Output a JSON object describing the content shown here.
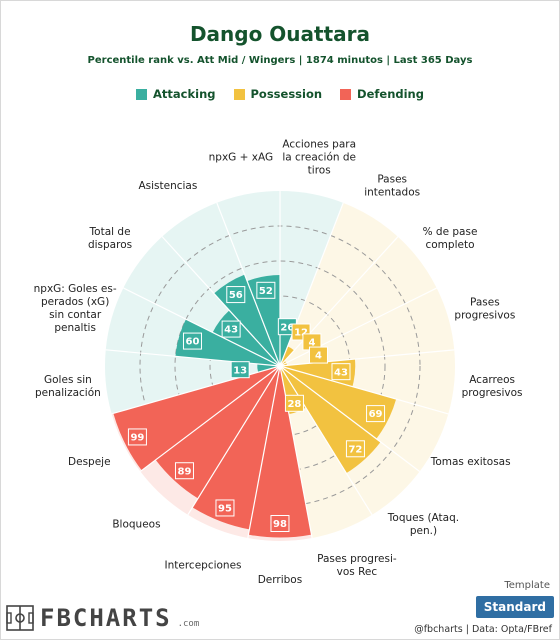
{
  "header": {
    "title": "Dango Ouattara",
    "subtitle": "Percentile rank vs. Att Mid / Wingers | 1874 minutos | Last 365 Days"
  },
  "legend": [
    {
      "label": "Attacking",
      "color": "#3aafa0"
    },
    {
      "label": "Possession",
      "color": "#f2c240"
    },
    {
      "label": "Defending",
      "color": "#f26457"
    }
  ],
  "chart_data": {
    "type": "polar-bar",
    "title": "Dango Ouattara",
    "subtitle": "Percentile rank vs. Att Mid / Wingers | 1874 minutos | Last 365 Days",
    "rlim": [
      0,
      100
    ],
    "grid": true,
    "legend_position": "top",
    "categories": [
      "Acciones para la creación de tiros",
      "Pases intentados",
      "% de pase completo",
      "Pases progresivos",
      "Acarreos progresivos",
      "Tomas exitosas",
      "Toques (Ataq. pen.)",
      "Pases progresivos Rec",
      "Derribos",
      "Intercepciones",
      "Bloqueos",
      "Despeje",
      "Goles sin penalización",
      "npxG: Goles esperados (xG) sin contar penaltis",
      "Total de disparos",
      "Asistencias",
      "npxG + xAG"
    ],
    "category_label_lines": [
      [
        "Acciones para",
        "la creación de",
        "tiros"
      ],
      [
        "Pases",
        "intentados"
      ],
      [
        "% de pase",
        "completo"
      ],
      [
        "Pases",
        "progresivos"
      ],
      [
        "Acarreos",
        "progresivos"
      ],
      [
        "Tomas exitosas"
      ],
      [
        "Toques (Ataq.",
        "pen.)"
      ],
      [
        "Pases progresi-",
        "vos Rec"
      ],
      [
        "Derribos"
      ],
      [
        "Intercepciones"
      ],
      [
        "Bloqueos"
      ],
      [
        "Despeje"
      ],
      [
        "Goles sin",
        "penalización"
      ],
      [
        "npxG: Goles es-",
        "perados (xG)",
        "sin contar",
        "penaltis"
      ],
      [
        "Total de",
        "disparos"
      ],
      [
        "Asistencias"
      ],
      [
        "npxG + xAG"
      ]
    ],
    "groups": [
      "Attacking",
      "Possession",
      "Possession",
      "Possession",
      "Possession",
      "Possession",
      "Possession",
      "Possession",
      "Defending",
      "Defending",
      "Defending",
      "Defending",
      "Attacking",
      "Attacking",
      "Attacking",
      "Attacking",
      "Attacking"
    ],
    "values": [
      26,
      12,
      4,
      4,
      43,
      69,
      72,
      28,
      98,
      95,
      89,
      99,
      13,
      60,
      43,
      56,
      52
    ],
    "group_colors": {
      "Attacking": "#3aafa0",
      "Possession": "#f2c240",
      "Defending": "#f26457"
    },
    "background_colors": {
      "Attacking": "#e6f5f3",
      "Possession": "#fdf7e6",
      "Defending": "#fde9e6"
    }
  },
  "footer": {
    "brand": "FBCHARTS",
    "brand_suffix": ".com",
    "template_label": "Template",
    "template_button": "Standard",
    "credits": "@fbcharts | Data: Opta/FBref"
  }
}
